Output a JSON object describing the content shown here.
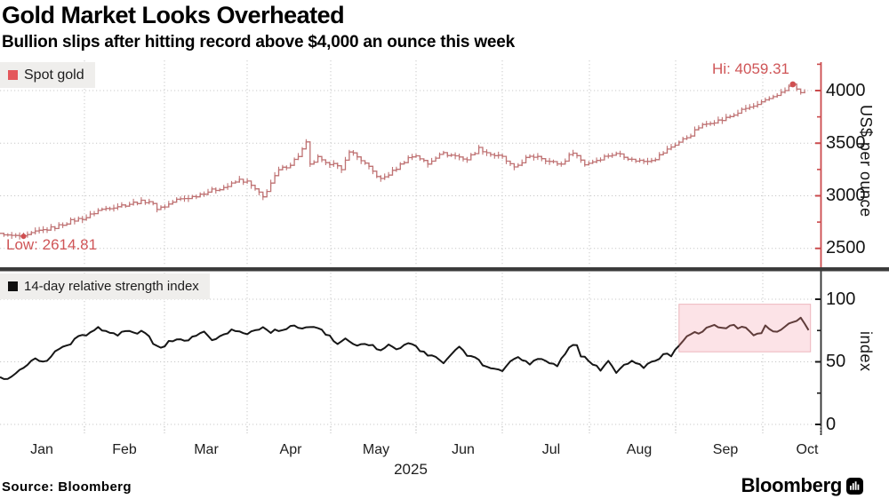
{
  "header": {
    "title": "Gold Market Looks Overheated",
    "subtitle": "Bullion slips after hitting record above $4,000 an ounce this week"
  },
  "top_chart": {
    "legend": "Spot gold",
    "hi_label": "Hi: 4059.31",
    "low_label": "Low: 2614.81",
    "axis_title": "US$ per ounce",
    "yticks": [
      "4000",
      "3500",
      "3000",
      "2500"
    ]
  },
  "bottom_chart": {
    "legend": "14-day relative strength index",
    "axis_title": "index",
    "yticks": [
      "100",
      "50",
      "0"
    ]
  },
  "x_axis": {
    "months": [
      "Jan",
      "Feb",
      "Mar",
      "Apr",
      "May",
      "Jun",
      "Jul",
      "Aug",
      "Sep",
      "Oct"
    ],
    "year": "2025"
  },
  "footer": {
    "source": "Source: Bloomberg",
    "brand": "Bloomberg"
  },
  "colors": {
    "gold_line": "#bf7273",
    "gold_axis": "#cb4a4c",
    "marker_red": "#d04f51",
    "hilo_text": "#cf5557",
    "rsi_line": "#161616",
    "rsi_line_highlight": "#5f3c3a",
    "highlight_fill": "#fce3e7",
    "highlight_border": "#edb6bd",
    "legend_bg": "#efeeec",
    "grid": "#c9c9c9",
    "divider": "#3b3b3b"
  },
  "chart_data": [
    {
      "type": "line",
      "name": "Spot gold",
      "style": "daily-ohlc-steps",
      "x_unit": "trading-day index (Jan 2025 = 0)",
      "ylabel": "US$ per ounce",
      "ylim": [
        2450,
        4280
      ],
      "yticks": [
        2500,
        3000,
        3500,
        4000
      ],
      "yticks_minor": [
        2750,
        3250,
        3750,
        4250
      ],
      "high": {
        "x": 202,
        "value": 4059.31,
        "label": "Hi: 4059.31"
      },
      "low": {
        "x": 6,
        "value": 2614.81,
        "label": "Low: 2614.81"
      },
      "points": [
        [
          0,
          2640
        ],
        [
          2,
          2625
        ],
        [
          6,
          2614.81
        ],
        [
          10,
          2665
        ],
        [
          14,
          2700
        ],
        [
          18,
          2760
        ],
        [
          22,
          2795
        ],
        [
          25,
          2860
        ],
        [
          28,
          2890
        ],
        [
          32,
          2915
        ],
        [
          35,
          2940
        ],
        [
          38,
          2950
        ],
        [
          40,
          2880
        ],
        [
          42,
          2900
        ],
        [
          45,
          2960
        ],
        [
          49,
          2990
        ],
        [
          52,
          3030
        ],
        [
          55,
          3060
        ],
        [
          58,
          3090
        ],
        [
          61,
          3150
        ],
        [
          63,
          3130
        ],
        [
          65,
          3060
        ],
        [
          67,
          2985
        ],
        [
          69,
          3120
        ],
        [
          71,
          3240
        ],
        [
          74,
          3300
        ],
        [
          76,
          3380
        ],
        [
          78,
          3500
        ],
        [
          79,
          3290
        ],
        [
          81,
          3360
        ],
        [
          83,
          3300
        ],
        [
          85,
          3320
        ],
        [
          87,
          3235
        ],
        [
          89,
          3430
        ],
        [
          92,
          3340
        ],
        [
          95,
          3230
        ],
        [
          97,
          3155
        ],
        [
          100,
          3230
        ],
        [
          104,
          3360
        ],
        [
          106,
          3385
        ],
        [
          109,
          3300
        ],
        [
          112,
          3405
        ],
        [
          116,
          3380
        ],
        [
          119,
          3345
        ],
        [
          122,
          3450
        ],
        [
          125,
          3395
        ],
        [
          128,
          3365
        ],
        [
          131,
          3260
        ],
        [
          134,
          3355
        ],
        [
          137,
          3380
        ],
        [
          140,
          3325
        ],
        [
          143,
          3300
        ],
        [
          146,
          3420
        ],
        [
          149,
          3300
        ],
        [
          152,
          3340
        ],
        [
          155,
          3385
        ],
        [
          158,
          3400
        ],
        [
          161,
          3340
        ],
        [
          164,
          3330
        ],
        [
          167,
          3355
        ],
        [
          169,
          3410
        ],
        [
          171,
          3465
        ],
        [
          173,
          3510
        ],
        [
          176,
          3580
        ],
        [
          178,
          3650
        ],
        [
          181,
          3700
        ],
        [
          184,
          3720
        ],
        [
          187,
          3770
        ],
        [
          190,
          3830
        ],
        [
          193,
          3860
        ],
        [
          195,
          3900
        ],
        [
          197,
          3945
        ],
        [
          200,
          4000
        ],
        [
          201,
          4040
        ],
        [
          202,
          4059.31
        ],
        [
          204,
          3975
        ],
        [
          205,
          3995
        ]
      ]
    },
    {
      "type": "line",
      "name": "14-day relative strength index",
      "x_unit": "trading-day index (Jan 2025 = 0)",
      "ylabel": "index",
      "ylim": [
        0,
        110
      ],
      "yticks": [
        0,
        50,
        100
      ],
      "yticks_minor": [
        25,
        75
      ],
      "highlight_region": {
        "x_start": 173,
        "x_end": 206.5,
        "v_top": 96,
        "v_bottom": 58
      },
      "points": [
        [
          0,
          38
        ],
        [
          2,
          36
        ],
        [
          5,
          43
        ],
        [
          7,
          48
        ],
        [
          9,
          53
        ],
        [
          11,
          49
        ],
        [
          13,
          55
        ],
        [
          15,
          60
        ],
        [
          18,
          65
        ],
        [
          20,
          70
        ],
        [
          23,
          73
        ],
        [
          25,
          77
        ],
        [
          28,
          74
        ],
        [
          30,
          72
        ],
        [
          32,
          75
        ],
        [
          34,
          73
        ],
        [
          37,
          74
        ],
        [
          39,
          65
        ],
        [
          41,
          61
        ],
        [
          43,
          66
        ],
        [
          45,
          69
        ],
        [
          48,
          67
        ],
        [
          50,
          72
        ],
        [
          52,
          74
        ],
        [
          54,
          68
        ],
        [
          57,
          71
        ],
        [
          59,
          76
        ],
        [
          62,
          72
        ],
        [
          64,
          74
        ],
        [
          67,
          78
        ],
        [
          69,
          74
        ],
        [
          72,
          76
        ],
        [
          75,
          80
        ],
        [
          77,
          76
        ],
        [
          80,
          78
        ],
        [
          82,
          75
        ],
        [
          84,
          70
        ],
        [
          86,
          65
        ],
        [
          88,
          68
        ],
        [
          91,
          62
        ],
        [
          93,
          65
        ],
        [
          95,
          63
        ],
        [
          97,
          59
        ],
        [
          99,
          63
        ],
        [
          101,
          60
        ],
        [
          104,
          64
        ],
        [
          106,
          62
        ],
        [
          108,
          57
        ],
        [
          111,
          53
        ],
        [
          113,
          50
        ],
        [
          115,
          56
        ],
        [
          117,
          61
        ],
        [
          119,
          55
        ],
        [
          121,
          53
        ],
        [
          123,
          48
        ],
        [
          126,
          45
        ],
        [
          128,
          42
        ],
        [
          130,
          50
        ],
        [
          132,
          54
        ],
        [
          135,
          47
        ],
        [
          137,
          53
        ],
        [
          139,
          52
        ],
        [
          142,
          46
        ],
        [
          143,
          52
        ],
        [
          145,
          61
        ],
        [
          147,
          64
        ],
        [
          148,
          55
        ],
        [
          151,
          49
        ],
        [
          153,
          44
        ],
        [
          155,
          52
        ],
        [
          157,
          42
        ],
        [
          159,
          47
        ],
        [
          161,
          50
        ],
        [
          164,
          46
        ],
        [
          165,
          49
        ],
        [
          168,
          52
        ],
        [
          169,
          57
        ],
        [
          171,
          55
        ],
        [
          173,
          62
        ],
        [
          175,
          71
        ],
        [
          177,
          75
        ],
        [
          178,
          73
        ],
        [
          180,
          77
        ],
        [
          181,
          79
        ],
        [
          183,
          78
        ],
        [
          185,
          76
        ],
        [
          186,
          80
        ],
        [
          188,
          77
        ],
        [
          189,
          79
        ],
        [
          191,
          74
        ],
        [
          192,
          70
        ],
        [
          194,
          73
        ],
        [
          195,
          78
        ],
        [
          197,
          74
        ],
        [
          198,
          74
        ],
        [
          200,
          78
        ],
        [
          201,
          80
        ],
        [
          203,
          83
        ],
        [
          204,
          86
        ],
        [
          206,
          75
        ]
      ]
    }
  ]
}
